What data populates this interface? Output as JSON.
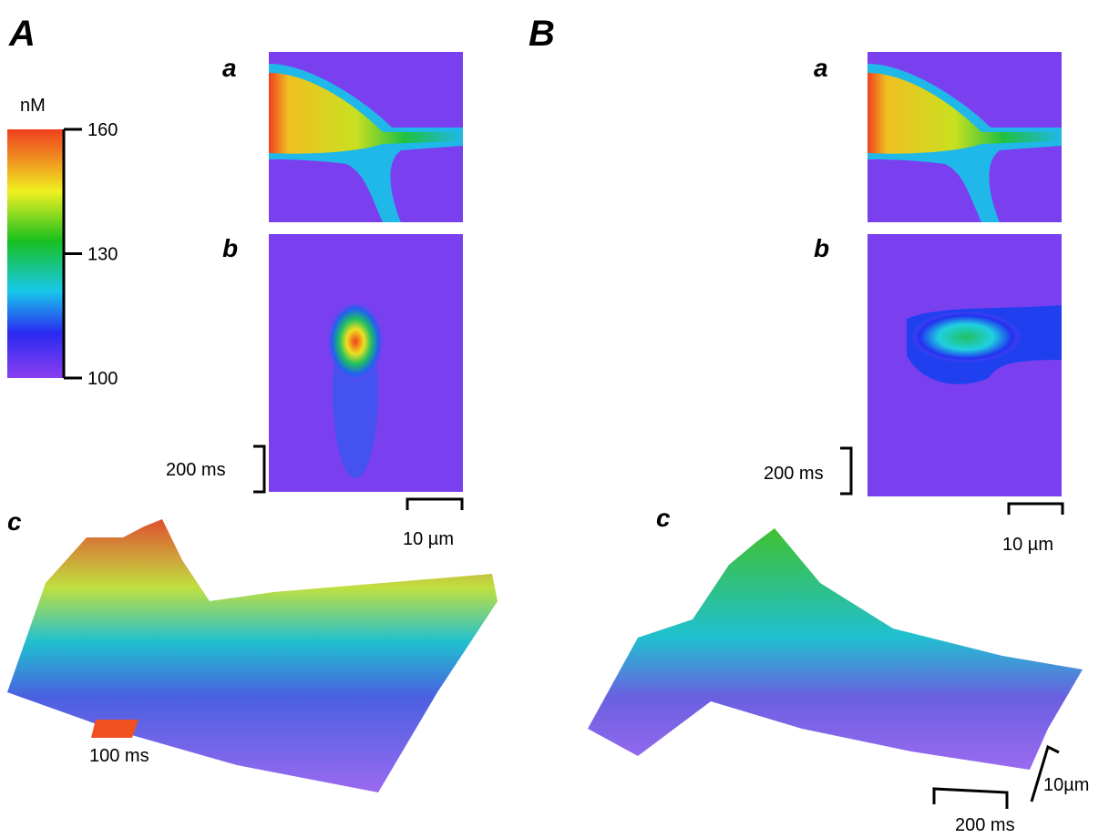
{
  "panels": [
    {
      "label": "A",
      "sub_a": "a",
      "sub_b": "b",
      "sub_c": "c",
      "time_scale": "200 ms",
      "space_scale": "10 µm",
      "surface_scale": "100 ms"
    },
    {
      "label": "B",
      "sub_a": "a",
      "sub_b": "b",
      "sub_c": "c",
      "time_scale": "200 ms",
      "space_scale": "10 µm",
      "surface_time_scale": "200 ms",
      "surface_space_scale": "10µm"
    }
  ],
  "colorbar": {
    "unit": "nM",
    "lim": [
      100,
      160
    ],
    "ticks": [
      100,
      130,
      160
    ]
  }
}
